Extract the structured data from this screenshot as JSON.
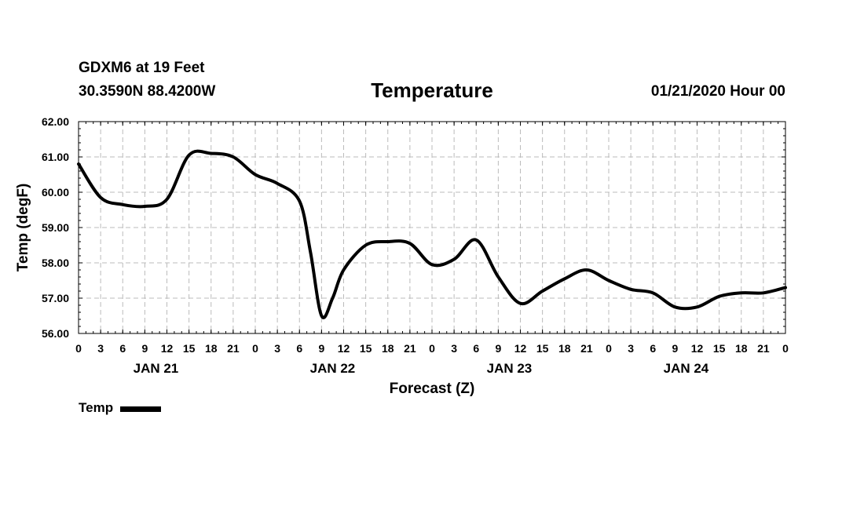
{
  "header": {
    "station": "GDXM6 at 19 Feet",
    "coords": "30.3590N 88.4200W",
    "title": "Temperature",
    "run": "01/21/2020 Hour 00"
  },
  "colors": {
    "line": "#000000",
    "grid": "#bbbbbb",
    "background": "#ffffff"
  },
  "chart_data": {
    "type": "line",
    "title": "Temperature",
    "xlabel": "Forecast (Z)",
    "ylabel": "Temp (degF)",
    "ylim": [
      56.0,
      62.0
    ],
    "yticks": [
      "56.00",
      "57.00",
      "58.00",
      "59.00",
      "60.00",
      "61.00",
      "62.00"
    ],
    "xlim": [
      0,
      96
    ],
    "x_unit": "hours from 01/21/2020 00Z",
    "xtick_labels": [
      "0",
      "3",
      "6",
      "9",
      "12",
      "15",
      "18",
      "21",
      "0",
      "3",
      "6",
      "9",
      "12",
      "15",
      "18",
      "21",
      "0",
      "3",
      "6",
      "9",
      "12",
      "15",
      "18",
      "21",
      "0",
      "3",
      "6",
      "9",
      "12",
      "15",
      "18",
      "21",
      "0"
    ],
    "day_labels": [
      "JAN 21",
      "JAN 22",
      "JAN 23",
      "JAN 24"
    ],
    "grid": true,
    "legend": "bottom-left",
    "series": [
      {
        "name": "Temp",
        "x": [
          0,
          3,
          6,
          9,
          12,
          15,
          18,
          21,
          24,
          27,
          30,
          31.5,
          33,
          34.5,
          36,
          39,
          42,
          45,
          48,
          51,
          54,
          57,
          60,
          63,
          66,
          69,
          72,
          75,
          78,
          81,
          84,
          87,
          90,
          93,
          96
        ],
        "values": [
          60.8,
          59.85,
          59.65,
          59.6,
          59.8,
          61.05,
          61.1,
          61.0,
          60.5,
          60.25,
          59.75,
          58.3,
          56.5,
          57.0,
          57.8,
          58.5,
          58.6,
          58.55,
          57.95,
          58.1,
          58.65,
          57.6,
          56.85,
          57.2,
          57.55,
          57.8,
          57.5,
          57.25,
          57.15,
          56.75,
          56.75,
          57.05,
          57.15,
          57.15,
          57.3
        ]
      }
    ]
  }
}
